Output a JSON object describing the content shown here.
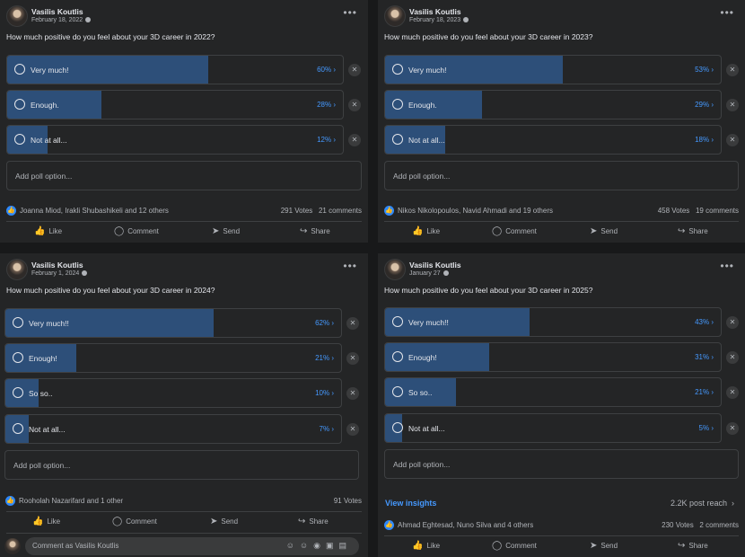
{
  "posts": [
    {
      "author": "Vasilis Koutlis",
      "date": "February 18, 2022",
      "question": "How much positive do you feel about your 3D career in 2022?",
      "options": [
        {
          "label": "Very much!",
          "percent": "60%",
          "fill": 0.6
        },
        {
          "label": "Enough.",
          "percent": "28%",
          "fill": 0.28
        },
        {
          "label": "Not at all...",
          "percent": "12%",
          "fill": 0.12
        }
      ],
      "add_option": "Add poll option...",
      "reactors": "Joanna Miod, Irakli Shubashikeli and 12 others",
      "votes": "291 Votes",
      "comments": "21 comments"
    },
    {
      "author": "Vasilis Koutlis",
      "date": "February 18, 2023",
      "question": "How much positive do you feel about your 3D career in 2023?",
      "options": [
        {
          "label": "Very much!",
          "percent": "53%",
          "fill": 0.53
        },
        {
          "label": "Enough.",
          "percent": "29%",
          "fill": 0.29
        },
        {
          "label": "Not at all...",
          "percent": "18%",
          "fill": 0.18
        }
      ],
      "add_option": "Add poll option...",
      "reactors": "Nikos Nikolopoulos, Navid Ahmadi and 19 others",
      "votes": "458 Votes",
      "comments": "19 comments"
    },
    {
      "author": "Vasilis Koutlis",
      "date": "February 1, 2024",
      "question": "How much positive do you feel about your 3D career in 2024?",
      "options": [
        {
          "label": "Very much!!",
          "percent": "62%",
          "fill": 0.62
        },
        {
          "label": "Enough!",
          "percent": "21%",
          "fill": 0.21
        },
        {
          "label": "So so..",
          "percent": "10%",
          "fill": 0.1
        },
        {
          "label": "Not at all...",
          "percent": "7%",
          "fill": 0.07
        }
      ],
      "add_option": "Add poll option...",
      "reactors": "Rooholah Nazarifard and 1 other",
      "votes": "91 Votes",
      "comment_placeholder": "Comment as Vasilis Koutlis"
    },
    {
      "author": "Vasilis Koutlis",
      "date": "January 27",
      "question": "How much positive do you feel about your 3D career in 2025?",
      "options": [
        {
          "label": "Very much!!",
          "percent": "43%",
          "fill": 0.43
        },
        {
          "label": "Enough!",
          "percent": "31%",
          "fill": 0.31
        },
        {
          "label": "So so..",
          "percent": "21%",
          "fill": 0.21
        },
        {
          "label": "Not at all...",
          "percent": "5%",
          "fill": 0.05
        }
      ],
      "add_option": "Add poll option...",
      "insights": "View insights",
      "reach": "2.2K post reach",
      "reactors": "Ahmad Eghtesad, Nuno Silva and 4 others",
      "votes": "230 Votes",
      "comments": "2 comments"
    }
  ],
  "actions": {
    "like": "Like",
    "comment": "Comment",
    "send": "Send",
    "share": "Share"
  },
  "icons": {
    "avatar": "avatar",
    "globe": "globe-icon",
    "more": "more-options-icon",
    "radio": "radio-icon",
    "remove": "close-icon",
    "like": "thumbs-up-icon",
    "comment": "comment-bubble-icon",
    "send": "send-icon",
    "share": "share-arrow-icon",
    "chevron": "chevron-right-icon"
  },
  "colors": {
    "background": "#18191a",
    "card": "#242526",
    "bar_fill": "#2d4f79",
    "accent": "#4599ff",
    "text": "#e4e6eb",
    "muted": "#b0b3b8"
  }
}
